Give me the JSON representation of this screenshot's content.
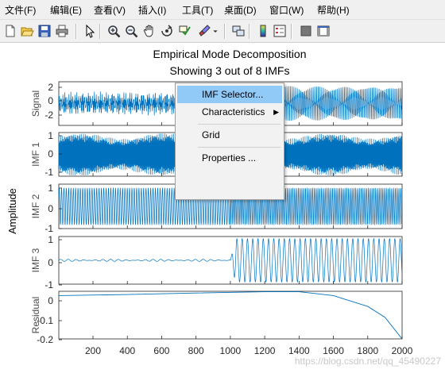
{
  "menubar": {
    "items": [
      "文件(F)",
      "编辑(E)",
      "查看(V)",
      "插入(I)",
      "工具(T)",
      "桌面(D)",
      "窗口(W)",
      "帮助(H)"
    ]
  },
  "toolbar": {
    "icons": [
      "new-file-icon",
      "open-folder-icon",
      "save-icon",
      "print-icon",
      "pointer-icon",
      "zoom-in-icon",
      "zoom-out-icon",
      "pan-hand-icon",
      "rotate-3d-icon",
      "data-cursor-icon",
      "brush-icon",
      "brush-dropdown-icon",
      "link-plot-icon",
      "colorbar-icon",
      "legend-icon",
      "hide-plot-tools-icon",
      "show-plot-tools-icon"
    ]
  },
  "figure": {
    "title_line1": "Empirical Mode Decomposition",
    "title_line2": "Showing 3 out of 8 IMFs",
    "ylabel": "Amplitude",
    "watermark": "https://blog.csdn.net/qq_45490227",
    "accent_color": "#0072bd"
  },
  "context_menu": {
    "items": [
      {
        "label": "IMF Selector...",
        "highlighted": true
      },
      {
        "label": "Characteristics",
        "submenu": true
      },
      {
        "label": "Grid"
      },
      {
        "label": "Properties ..."
      }
    ]
  },
  "chart_data": {
    "type": "line",
    "x": {
      "range": [
        1,
        2000
      ],
      "ticks": [
        "200",
        "400",
        "600",
        "800",
        "1000",
        "1200",
        "1400",
        "1600",
        "1800",
        "2000"
      ]
    },
    "series": [
      {
        "name": "Signal",
        "yticks": [
          "2",
          "0",
          "-2"
        ],
        "ylim": [
          -2.6,
          2.6
        ]
      },
      {
        "name": "IMF 1",
        "yticks": [
          "1",
          "0",
          "-1"
        ],
        "ylim": [
          -1.1,
          1.1
        ]
      },
      {
        "name": "IMF 2",
        "yticks": [
          "1",
          "0",
          "-1"
        ],
        "ylim": [
          -1.2,
          1.2
        ]
      },
      {
        "name": "IMF 3",
        "yticks": [
          "1",
          "0",
          "-1"
        ],
        "ylim": [
          -1.1,
          1.1
        ]
      },
      {
        "name": "Residual",
        "yticks": [
          "0",
          "-0.1",
          "-0.2"
        ],
        "ylim": [
          -0.2,
          0.02
        ],
        "points": [
          [
            1,
            0
          ],
          [
            400,
            0.005
          ],
          [
            800,
            0.012
          ],
          [
            1200,
            0.018
          ],
          [
            1400,
            0.018
          ],
          [
            1600,
            0.0
          ],
          [
            1800,
            -0.05
          ],
          [
            1900,
            -0.1
          ],
          [
            2000,
            -0.2
          ]
        ]
      }
    ]
  }
}
